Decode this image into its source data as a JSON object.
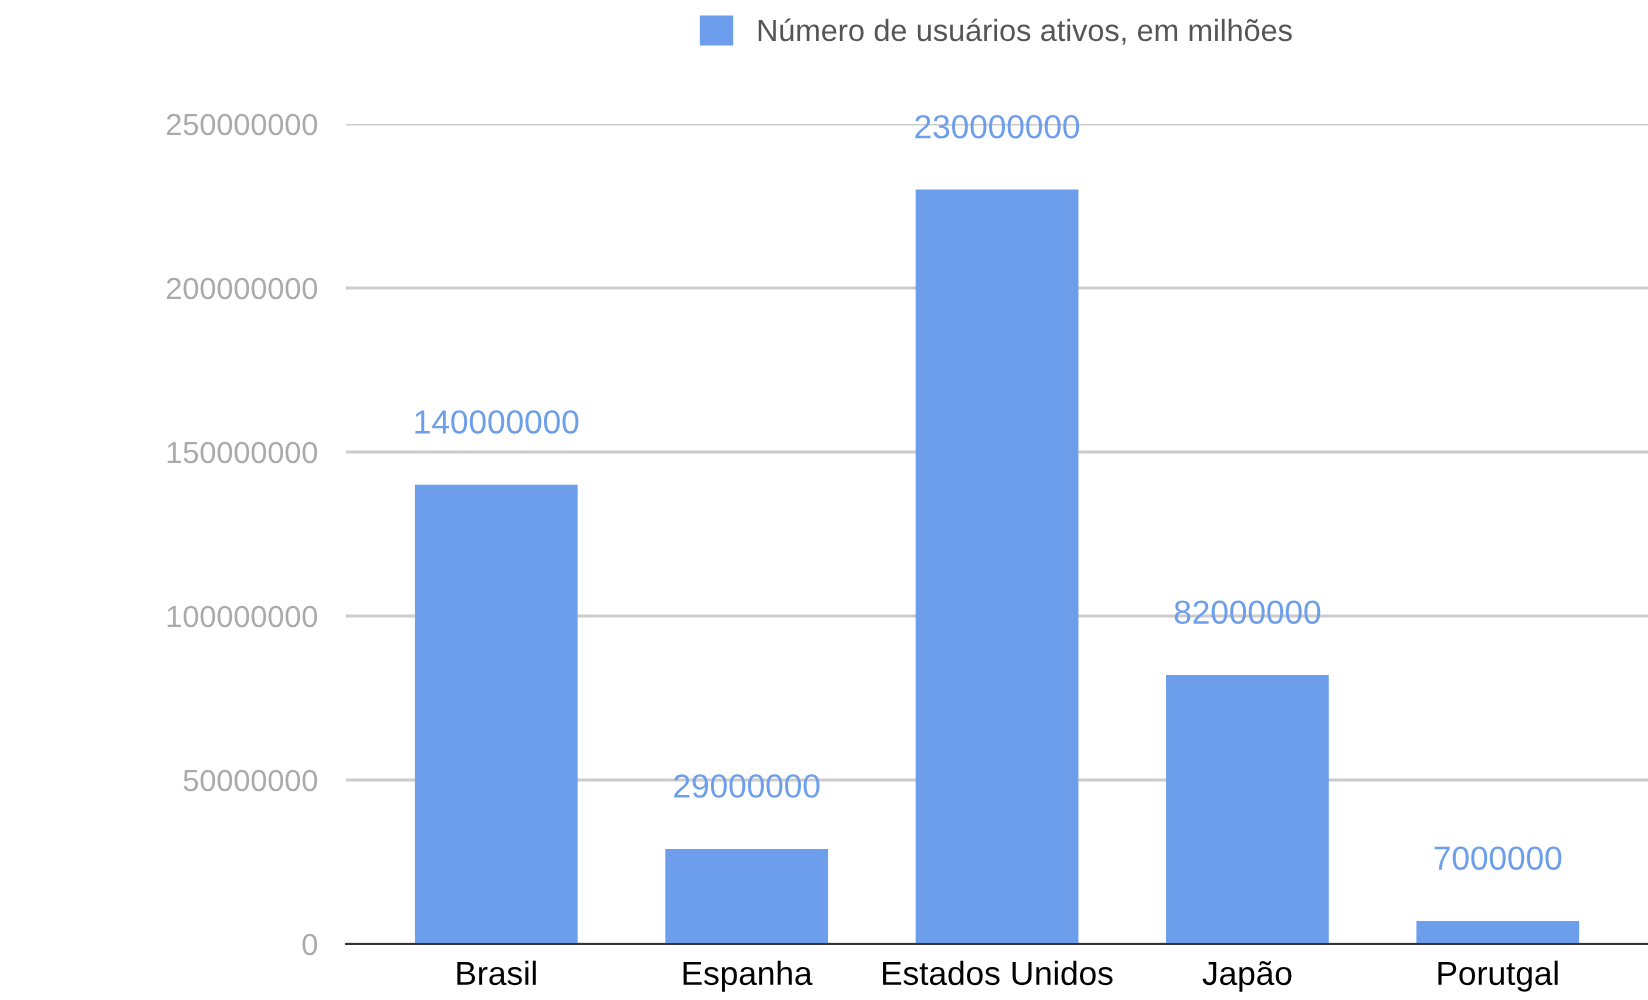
{
  "chart_data": {
    "type": "bar",
    "categories": [
      "Brasil",
      "Espanha",
      "Estados Unidos",
      "Japão",
      "Porutgal"
    ],
    "series": [
      {
        "name": "Número de usuários ativos, em milhões",
        "color": "#6d9eeb",
        "values": [
          140000000,
          29000000,
          230000000,
          82000000,
          7000000
        ]
      }
    ],
    "ylim": [
      0,
      250000000
    ],
    "yticks": [
      0,
      50000000,
      100000000,
      150000000,
      200000000,
      250000000
    ],
    "grid": "y",
    "legend": "top",
    "data_labels": true
  }
}
